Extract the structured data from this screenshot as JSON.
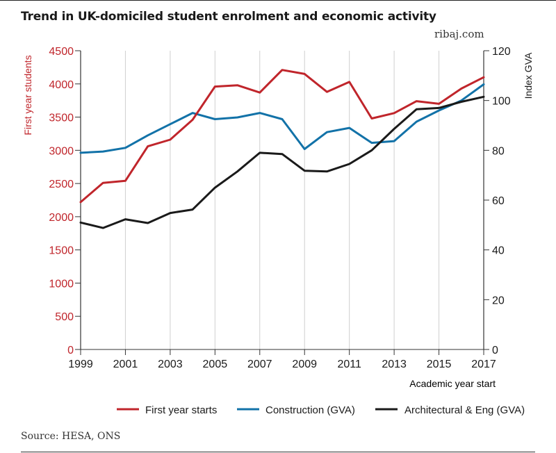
{
  "header": {
    "title": "Trend in UK-domiciled student enrolment and economic activity",
    "brand": "ribaj.com"
  },
  "footer": {
    "source": "Source: HESA, ONS"
  },
  "chart_data": {
    "type": "line",
    "x": [
      1999,
      2000,
      2001,
      2002,
      2003,
      2004,
      2005,
      2006,
      2007,
      2008,
      2009,
      2010,
      2011,
      2012,
      2013,
      2014,
      2015,
      2016,
      2017
    ],
    "xticks": [
      1999,
      2001,
      2003,
      2005,
      2007,
      2009,
      2011,
      2013,
      2015,
      2017
    ],
    "xlabel": "Academic year start",
    "ylabel_left": "First year students",
    "ylabel_right": "Index GVA",
    "ylim_left": [
      0,
      4500
    ],
    "yticks_left": [
      0,
      500,
      1000,
      1500,
      2000,
      2500,
      3000,
      3500,
      4000,
      4500
    ],
    "ylim_right": [
      0,
      120
    ],
    "yticks_right": [
      0,
      20,
      40,
      60,
      80,
      100,
      120
    ],
    "legend_position": "bottom",
    "grid": "vertical",
    "colors": {
      "left_axis": "#c0252b"
    },
    "series": [
      {
        "name": "First year starts",
        "axis": "left",
        "color": "#c0252b",
        "values": [
          2220,
          2510,
          2540,
          3060,
          3160,
          3460,
          3960,
          3980,
          3870,
          4210,
          4150,
          3880,
          4030,
          3480,
          3560,
          3740,
          3700,
          3930,
          4100
        ]
      },
      {
        "name": "Construction (GVA)",
        "axis": "right",
        "color": "#1272a8",
        "values": [
          79,
          79.5,
          81,
          86,
          90.5,
          95,
          92.5,
          93.2,
          95,
          92.5,
          80.5,
          87.3,
          89,
          83,
          83.7,
          91.5,
          96,
          100,
          106.5
        ]
      },
      {
        "name": "Architectural & Eng (GVA)",
        "axis": "right",
        "color": "#1a1a1a",
        "values": [
          51,
          48.8,
          52.3,
          50.8,
          54.8,
          56.2,
          65,
          71.5,
          79,
          78.5,
          71.8,
          71.5,
          74.5,
          80,
          88.6,
          96.5,
          97,
          99.5,
          101.5
        ]
      }
    ]
  }
}
